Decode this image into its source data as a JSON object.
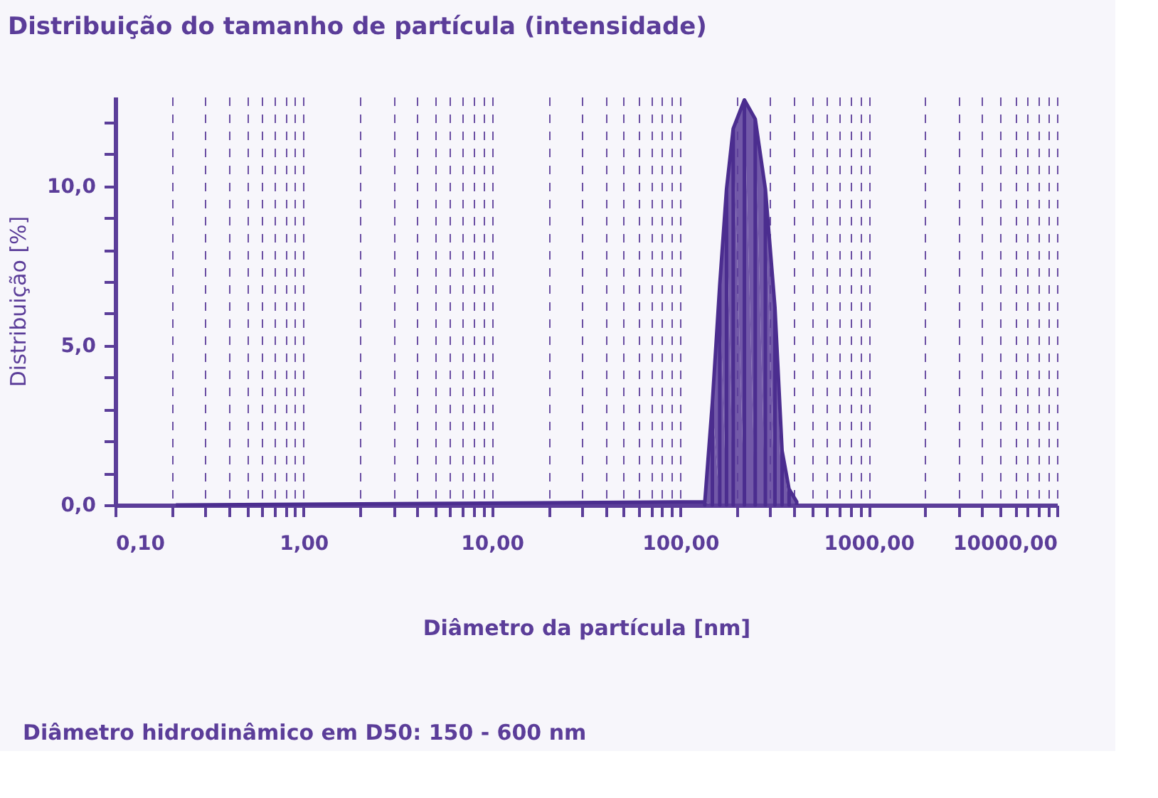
{
  "chart_data": {
    "type": "area",
    "title": "Distribuição do tamanho de partícula (intensidade)",
    "xlabel": "Diâmetro da partícula [nm]",
    "ylabel": "Distribuição [%]",
    "log": "x",
    "grid": "x",
    "line_style": "dashed",
    "x": [
      0.21,
      135,
      148,
      162,
      176,
      191,
      219,
      250,
      283,
      318,
      347,
      378,
      415
    ],
    "series": [
      {
        "color": "#5b3d99",
        "values": [
          0,
          0.1,
          3.2,
          6.9,
          9.9,
          11.8,
          12.7,
          12.1,
          9.9,
          6.2,
          1.7,
          0.5,
          0.1
        ]
      }
    ],
    "xlim": [
      0.1,
      10000
    ],
    "ylim": [
      0,
      12.8
    ],
    "xticks": [
      {
        "value": 0.1,
        "label": "0,10"
      },
      {
        "value": 0.2,
        "label": null
      },
      {
        "value": 0.3,
        "label": null
      },
      {
        "value": 0.4,
        "label": null
      },
      {
        "value": 0.5,
        "label": null
      },
      {
        "value": 0.6,
        "label": null
      },
      {
        "value": 0.7,
        "label": null
      },
      {
        "value": 0.8,
        "label": null
      },
      {
        "value": 0.9,
        "label": null
      },
      {
        "value": 1,
        "label": "1,00"
      },
      {
        "value": 2,
        "label": null
      },
      {
        "value": 3,
        "label": null
      },
      {
        "value": 4,
        "label": null
      },
      {
        "value": 5,
        "label": null
      },
      {
        "value": 6,
        "label": null
      },
      {
        "value": 7,
        "label": null
      },
      {
        "value": 8,
        "label": null
      },
      {
        "value": 9,
        "label": null
      },
      {
        "value": 10,
        "label": "10,00"
      },
      {
        "value": 20,
        "label": null
      },
      {
        "value": 30,
        "label": null
      },
      {
        "value": 40,
        "label": null
      },
      {
        "value": 50,
        "label": null
      },
      {
        "value": 60,
        "label": null
      },
      {
        "value": 70,
        "label": null
      },
      {
        "value": 80,
        "label": null
      },
      {
        "value": 90,
        "label": null
      },
      {
        "value": 100,
        "label": "100,00"
      },
      {
        "value": 200,
        "label": null
      },
      {
        "value": 300,
        "label": null
      },
      {
        "value": 400,
        "label": null
      },
      {
        "value": 500,
        "label": null
      },
      {
        "value": 600,
        "label": null
      },
      {
        "value": 700,
        "label": null
      },
      {
        "value": 800,
        "label": null
      },
      {
        "value": 900,
        "label": null
      },
      {
        "value": 1000,
        "label": "1000,00"
      },
      {
        "value": 2000,
        "label": null
      },
      {
        "value": 3000,
        "label": null
      },
      {
        "value": 4000,
        "label": null
      },
      {
        "value": 5000,
        "label": null
      },
      {
        "value": 6000,
        "label": null
      },
      {
        "value": 7000,
        "label": null
      },
      {
        "value": 8000,
        "label": null
      },
      {
        "value": 9000,
        "label": null
      },
      {
        "value": 10000,
        "label": "10000,00"
      }
    ],
    "yticks": [
      {
        "value": 0,
        "label": "0,0"
      },
      {
        "value": 1,
        "label": null
      },
      {
        "value": 2,
        "label": null
      },
      {
        "value": 3,
        "label": null
      },
      {
        "value": 4,
        "label": null
      },
      {
        "value": 5,
        "label": "5,0"
      },
      {
        "value": 6,
        "label": null
      },
      {
        "value": 7,
        "label": null
      },
      {
        "value": 8,
        "label": null
      },
      {
        "value": 9,
        "label": null
      },
      {
        "value": 10,
        "label": "10,0"
      },
      {
        "value": 11,
        "label": null
      },
      {
        "value": 12,
        "label": null
      }
    ],
    "annotations": [
      "Diâmetro hidrodinâmico em D50: 150 - 600 nm"
    ]
  }
}
